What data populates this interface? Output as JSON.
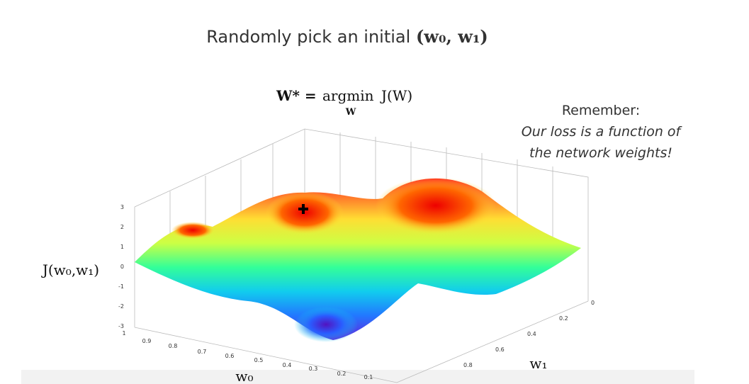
{
  "title": {
    "text": "Randomly pick an initial",
    "math": "(w₀, w₁)"
  },
  "formula": {
    "lhs": "W* =",
    "op": "argmin",
    "under": "W",
    "rhs": "J(W)"
  },
  "note": [
    "Remember:",
    "Our loss is a function of",
    "the network weights!"
  ],
  "plot": {
    "z_label": "J(w₀,w₁)",
    "x_label": "w₀",
    "y_label": "w₁",
    "z_ticks": [
      3,
      2,
      1,
      0,
      -1,
      -2,
      -3
    ],
    "x_ticks": [
      1,
      0.9,
      0.8,
      0.7,
      0.6,
      0.5,
      0.4,
      0.3,
      0.2,
      0.1
    ],
    "y_ticks": [
      0,
      0.2,
      0.4,
      0.6,
      0.8
    ]
  }
}
